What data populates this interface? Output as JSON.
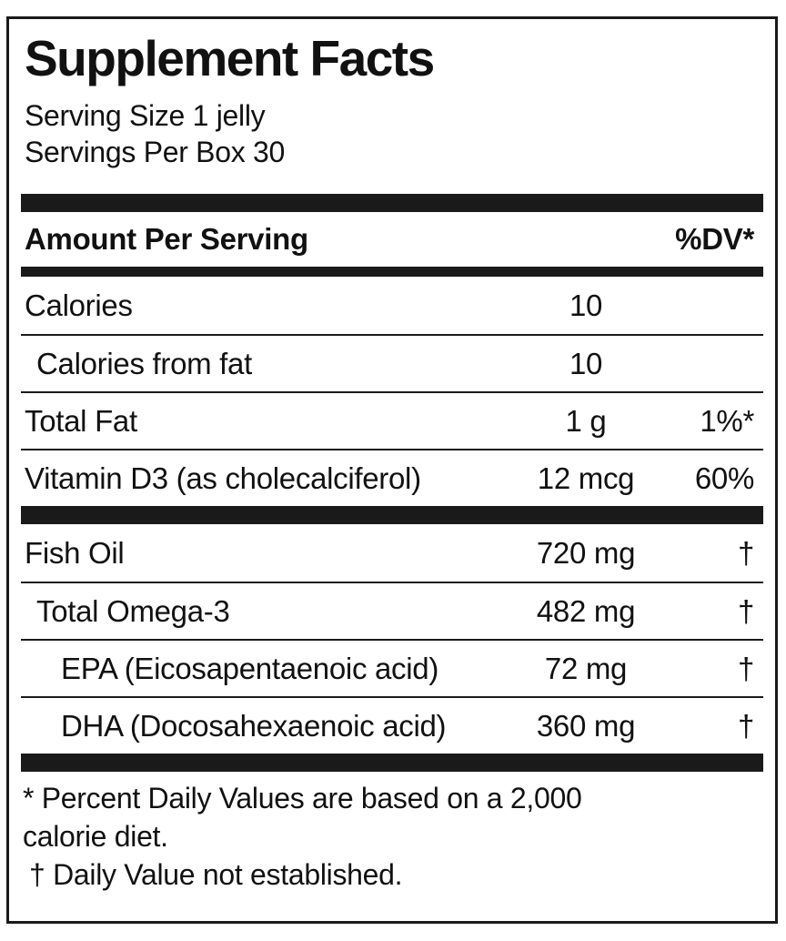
{
  "label": {
    "title": "Supplement Facts",
    "serving": {
      "size": "Serving Size 1 jelly",
      "per_box": "Servings Per Box 30"
    },
    "columns": {
      "amount_header": "Amount Per Serving",
      "dv_header": "%DV*"
    },
    "sections": [
      {
        "rows": [
          {
            "name": "Calories",
            "amount": "10",
            "dv": ""
          },
          {
            "name": "Calories from fat",
            "amount": "10",
            "dv": ""
          },
          {
            "name": "Total Fat",
            "amount": "1 g",
            "dv": "1%*"
          },
          {
            "name": "Vitamin D3 (as cholecalciferol)",
            "amount": "12 mcg",
            "dv": "60%"
          }
        ]
      },
      {
        "rows": [
          {
            "name": "Fish Oil",
            "amount": "720 mg",
            "dv": "†"
          },
          {
            "name": "Total Omega-3",
            "amount": "482 mg",
            "dv": "†"
          },
          {
            "name": "EPA (Eicosapentaenoic acid)",
            "amount": "72 mg",
            "dv": "†"
          },
          {
            "name": "DHA (Docosahexaenoic acid)",
            "amount": "360 mg",
            "dv": "†"
          }
        ]
      }
    ],
    "footnotes": {
      "dv_note": "* Percent Daily Values are based on a 2,000 calorie diet.",
      "dagger_note": "† Daily Value not established."
    },
    "colors": {
      "ink": "#111111",
      "bar": "#1a1a1a",
      "background": "#ffffff"
    }
  }
}
